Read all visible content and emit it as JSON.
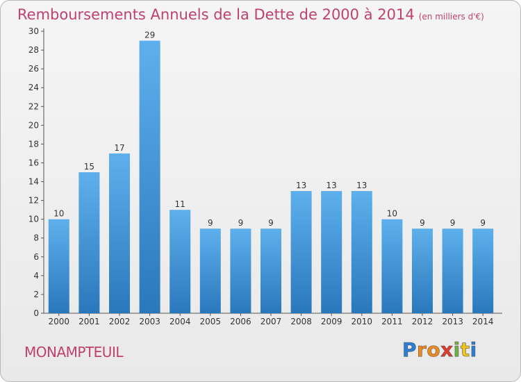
{
  "header": {
    "title": "Remboursements Annuels de la Dette de 2000 à 2014",
    "subtitle": "(en milliers d'€)"
  },
  "footer": {
    "place": "MONAMPTEUIL",
    "logo_letters": [
      "P",
      "r",
      "o",
      "x",
      "i",
      "t",
      "i"
    ],
    "logo_colors": [
      "#2a7fd4",
      "#f08a1c",
      "#f08a1c",
      "#e23b2e",
      "#6db33f",
      "#f0c419",
      "#2a7fd4"
    ]
  },
  "colors": {
    "bar_light": "#5eb0ec",
    "bar_dark": "#2a78bc",
    "text": "#333333",
    "accent": "#c04070"
  },
  "chart_data": {
    "type": "bar",
    "categories": [
      "2000",
      "2001",
      "2002",
      "2003",
      "2004",
      "2005",
      "2006",
      "2007",
      "2008",
      "2009",
      "2010",
      "2011",
      "2012",
      "2013",
      "2014"
    ],
    "values": [
      10,
      15,
      17,
      29,
      11,
      9,
      9,
      9,
      13,
      13,
      13,
      10,
      9,
      9,
      9
    ],
    "data_labels": [
      "10",
      "15",
      "17",
      "29",
      "11",
      "9",
      "9",
      "9",
      "13",
      "13",
      "13",
      "10",
      "9",
      "9",
      "9"
    ],
    "title": "Remboursements Annuels de la Dette de 2000 à 2014",
    "ylim": [
      0,
      30
    ],
    "yticks": [
      0,
      2,
      4,
      6,
      8,
      10,
      12,
      14,
      16,
      18,
      20,
      22,
      24,
      26,
      28,
      30
    ],
    "grid": false,
    "legend": "none"
  }
}
